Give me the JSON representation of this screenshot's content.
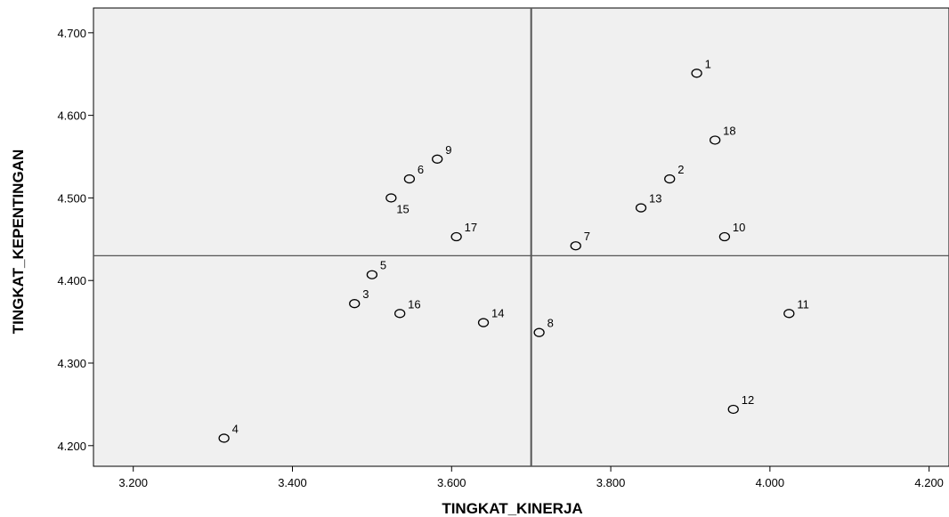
{
  "chart_data": {
    "type": "scatter",
    "title": "",
    "xlabel": "TINGKAT_KINERJA",
    "ylabel": "TINGKAT_KEPENTINGAN",
    "xlim": [
      3.15,
      4.225
    ],
    "ylim": [
      4.175,
      4.73
    ],
    "x_ticks": [
      3.2,
      3.4,
      3.6,
      3.8,
      4.0,
      4.2
    ],
    "x_tick_labels": [
      "3.200",
      "3.400",
      "3.600",
      "3.800",
      "4.000",
      "4.200"
    ],
    "y_ticks": [
      4.2,
      4.3,
      4.4,
      4.5,
      4.6,
      4.7
    ],
    "y_tick_labels": [
      "4.200",
      "4.300",
      "4.400",
      "4.500",
      "4.600",
      "4.700"
    ],
    "reference_lines": {
      "x": 3.7,
      "y": 4.43
    },
    "grid": false,
    "colors": {
      "plot_background": "#f0f0f0",
      "marker_edge": "#000000",
      "reference_line": "#555555"
    },
    "points": [
      {
        "label": "1",
        "x": 3.908,
        "y": 4.651
      },
      {
        "label": "2",
        "x": 3.874,
        "y": 4.523
      },
      {
        "label": "3",
        "x": 3.478,
        "y": 4.372
      },
      {
        "label": "4",
        "x": 3.314,
        "y": 4.209
      },
      {
        "label": "5",
        "x": 3.5,
        "y": 4.407
      },
      {
        "label": "6",
        "x": 3.547,
        "y": 4.523
      },
      {
        "label": "7",
        "x": 3.756,
        "y": 4.442
      },
      {
        "label": "8",
        "x": 3.71,
        "y": 4.337
      },
      {
        "label": "9",
        "x": 3.582,
        "y": 4.547
      },
      {
        "label": "10",
        "x": 3.943,
        "y": 4.453
      },
      {
        "label": "11",
        "x": 4.024,
        "y": 4.36
      },
      {
        "label": "12",
        "x": 3.954,
        "y": 4.244
      },
      {
        "label": "13",
        "x": 3.838,
        "y": 4.488
      },
      {
        "label": "14",
        "x": 3.64,
        "y": 4.349
      },
      {
        "label": "15",
        "x": 3.524,
        "y": 4.5
      },
      {
        "label": "16",
        "x": 3.535,
        "y": 4.36
      },
      {
        "label": "17",
        "x": 3.606,
        "y": 4.453
      },
      {
        "label": "18",
        "x": 3.931,
        "y": 4.57
      }
    ]
  }
}
